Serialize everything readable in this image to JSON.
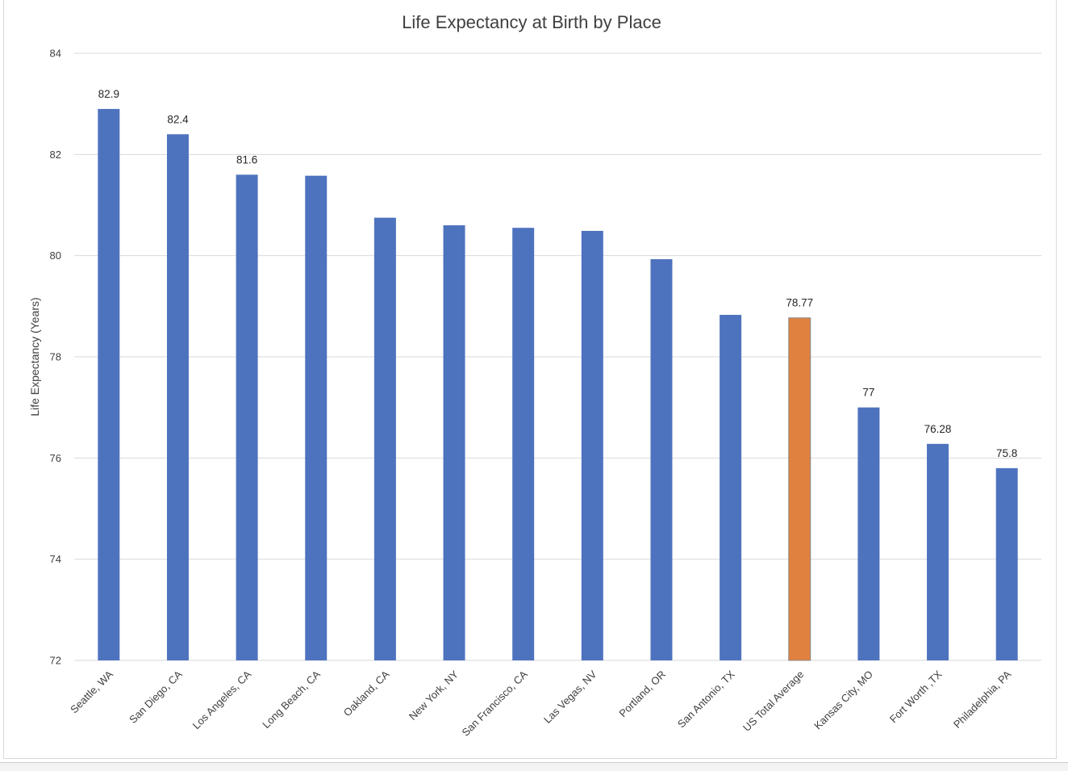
{
  "chart_data": {
    "type": "bar",
    "title": "Life Expectancy at Birth by Place",
    "xlabel": "",
    "ylabel": "Life Expectancy (Years)",
    "ylim": [
      72,
      84
    ],
    "yticks": [
      72,
      74,
      76,
      78,
      80,
      82,
      84
    ],
    "grid": true,
    "legend": "none",
    "categories": [
      "Seattle, WA",
      "San Diego, CA",
      "Los Angeles, CA",
      "Long Beach, CA",
      "Oakland, CA",
      "New York, NY",
      "San Francisco, CA",
      "Las Vegas, NV",
      "Portland, OR",
      "San Antonio, TX",
      "US Total Average",
      "Kansas City, MO",
      "Fort Worth ,TX",
      "Philadelphia, PA"
    ],
    "values": [
      82.9,
      82.4,
      81.6,
      81.58,
      80.75,
      80.6,
      80.55,
      80.49,
      79.93,
      78.83,
      78.77,
      77,
      76.28,
      75.8
    ],
    "data_labels": [
      "82.9",
      "82.4",
      "81.6",
      "",
      "",
      "",
      "",
      "",
      "",
      "",
      "78.77",
      "77",
      "76.28",
      "75.8"
    ],
    "bar_colors": [
      "#4e73be",
      "#4e73be",
      "#4e73be",
      "#4e73be",
      "#4e73be",
      "#4e73be",
      "#4e73be",
      "#4e73be",
      "#4e73be",
      "#4e73be",
      "#e0813f",
      "#4e73be",
      "#4e73be",
      "#4e73be"
    ],
    "colors": {
      "primary": "#4e73be",
      "highlight": "#e0813f",
      "grid": "#d9d9d9"
    }
  }
}
